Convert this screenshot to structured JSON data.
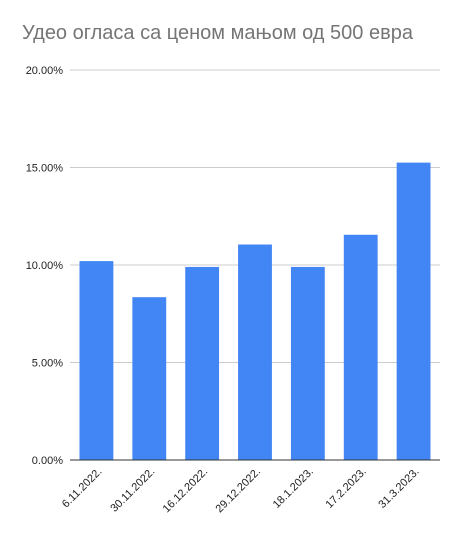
{
  "chart_data": {
    "type": "bar",
    "title": "Удео огласа са ценом мањом од 500 евра",
    "xlabel": "",
    "ylabel": "",
    "categories": [
      "6.11.2022.",
      "30.11.2022.",
      "16.12.2022.",
      "29.12.2022.",
      "18.1.2023.",
      "17.2.2023.",
      "31.3.2023."
    ],
    "values": [
      10.2,
      8.35,
      9.9,
      11.05,
      9.9,
      11.55,
      15.25
    ],
    "ylim": [
      0,
      20
    ],
    "yticks": [
      {
        "value": 0,
        "label": "0.00%"
      },
      {
        "value": 5,
        "label": "5.00%"
      },
      {
        "value": 10,
        "label": "10.00%"
      },
      {
        "value": 15,
        "label": "15.00%"
      },
      {
        "value": 20,
        "label": "20.00%"
      }
    ],
    "grid": true,
    "legend": "none",
    "bar_color": "#4285f4",
    "grid_color": "#cccccc",
    "axis_color": "#333333"
  }
}
